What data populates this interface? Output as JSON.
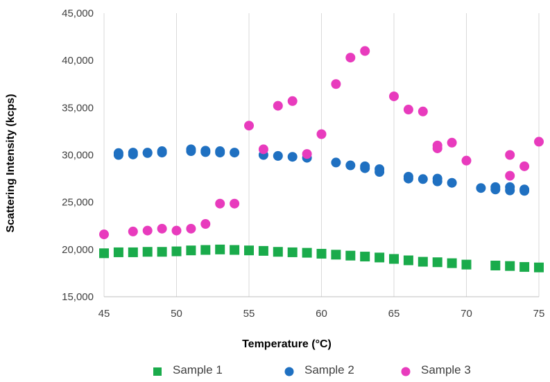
{
  "chart_data": {
    "type": "scatter",
    "title": "",
    "xlabel": "Temperature (°C)",
    "ylabel": "Scattering Intensity (kcps)",
    "xlim": [
      45,
      75
    ],
    "ylim": [
      15000,
      45000
    ],
    "x_ticks": [
      45,
      50,
      55,
      60,
      65,
      70,
      75
    ],
    "y_ticks": [
      15000,
      20000,
      25000,
      30000,
      35000,
      40000,
      45000
    ],
    "y_tick_labels": [
      "15,000",
      "20,000",
      "25,000",
      "30,000",
      "35,000",
      "40,000",
      "45,000"
    ],
    "grid": "vertical",
    "legend_position": "bottom",
    "series": [
      {
        "name": "Sample 1",
        "color": "#1aab4b",
        "marker": "square",
        "points": [
          [
            45,
            19600
          ],
          [
            46,
            19700
          ],
          [
            47,
            19700
          ],
          [
            48,
            19750
          ],
          [
            49,
            19750
          ],
          [
            50,
            19800
          ],
          [
            51,
            19900
          ],
          [
            52,
            19950
          ],
          [
            53,
            20000
          ],
          [
            54,
            19950
          ],
          [
            55,
            19900
          ],
          [
            56,
            19850
          ],
          [
            57,
            19750
          ],
          [
            58,
            19700
          ],
          [
            59,
            19650
          ],
          [
            60,
            19550
          ],
          [
            61,
            19450
          ],
          [
            62,
            19350
          ],
          [
            63,
            19250
          ],
          [
            64,
            19150
          ],
          [
            65,
            19000
          ],
          [
            66,
            18850
          ],
          [
            67,
            18700
          ],
          [
            68,
            18650
          ],
          [
            69,
            18550
          ],
          [
            70,
            18400
          ],
          [
            72,
            18300
          ],
          [
            73,
            18250
          ],
          [
            74,
            18150
          ],
          [
            75,
            18100
          ]
        ]
      },
      {
        "name": "Sample 2",
        "color": "#1f70c1",
        "marker": "circle",
        "points": [
          [
            46,
            30000
          ],
          [
            46,
            30200
          ],
          [
            47,
            30050
          ],
          [
            47,
            30250
          ],
          [
            48,
            30200
          ],
          [
            48,
            30250
          ],
          [
            49,
            30250
          ],
          [
            49,
            30400
          ],
          [
            51,
            30400
          ],
          [
            51,
            30600
          ],
          [
            52,
            30300
          ],
          [
            52,
            30450
          ],
          [
            53,
            30250
          ],
          [
            53,
            30400
          ],
          [
            54,
            30250
          ],
          [
            56,
            30000
          ],
          [
            57,
            29900
          ],
          [
            58,
            29800
          ],
          [
            59,
            29700
          ],
          [
            61,
            29200
          ],
          [
            62,
            28900
          ],
          [
            63,
            28800
          ],
          [
            63,
            28600
          ],
          [
            64,
            28500
          ],
          [
            64,
            28200
          ],
          [
            66,
            27700
          ],
          [
            66,
            27500
          ],
          [
            67,
            27450
          ],
          [
            68,
            27500
          ],
          [
            68,
            27200
          ],
          [
            69,
            27050
          ],
          [
            71,
            26500
          ],
          [
            72,
            26600
          ],
          [
            72,
            26350
          ],
          [
            73,
            26600
          ],
          [
            73,
            26250
          ],
          [
            74,
            26350
          ],
          [
            74,
            26200
          ]
        ]
      },
      {
        "name": "Sample 3",
        "color": "#e83bbd",
        "marker": "circle",
        "points": [
          [
            45,
            21600
          ],
          [
            47,
            21900
          ],
          [
            48,
            22000
          ],
          [
            49,
            22200
          ],
          [
            50,
            22000
          ],
          [
            51,
            22200
          ],
          [
            52,
            22700
          ],
          [
            53,
            24850
          ],
          [
            54,
            24850
          ],
          [
            55,
            33100
          ],
          [
            56,
            30600
          ],
          [
            57,
            35200
          ],
          [
            58,
            35700
          ],
          [
            59,
            30100
          ],
          [
            60,
            32200
          ],
          [
            61,
            37500
          ],
          [
            62,
            40300
          ],
          [
            63,
            41000
          ],
          [
            65,
            36200
          ],
          [
            66,
            34800
          ],
          [
            67,
            34600
          ],
          [
            68,
            31000
          ],
          [
            68,
            30700
          ],
          [
            69,
            31300
          ],
          [
            70,
            29400
          ],
          [
            73,
            30000
          ],
          [
            73,
            27800
          ],
          [
            74,
            28800
          ],
          [
            75,
            31400
          ]
        ]
      }
    ]
  }
}
